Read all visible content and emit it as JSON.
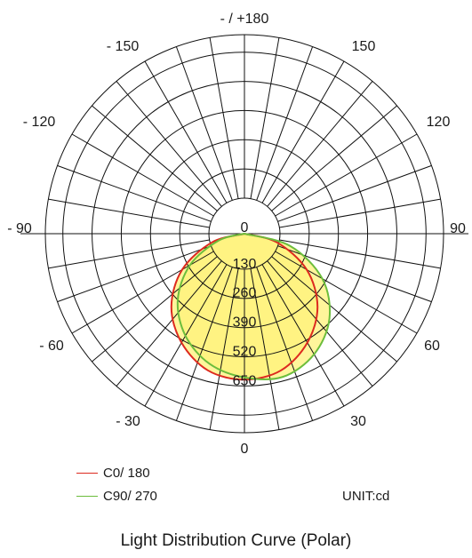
{
  "chart_data": {
    "type": "polar",
    "unit": "UNIT:cd",
    "caption": "Light Distribution Curve (Polar)",
    "radial_ticks": [
      0,
      130,
      260,
      390,
      520,
      650
    ],
    "rmax": 650,
    "angle_labels": {
      "top": "- / +180",
      "left_150": "- 150",
      "right_150": "150",
      "left_120": "- 120",
      "right_120": "120",
      "left_90": "- 90",
      "right_90": "90",
      "left_60": "- 60",
      "right_60": "60",
      "left_30": "- 30",
      "right_30": "30",
      "bottom": "0"
    },
    "colors": {
      "c0": "#dd2a1f",
      "c90": "#6cbd3c",
      "fill": "#fff27a"
    },
    "series": [
      {
        "name": "C0/ 180",
        "angles": [
          -90,
          -75,
          -60,
          -45,
          -30,
          -15,
          0,
          15,
          30,
          45,
          60,
          75,
          90
        ],
        "values": [
          0,
          150,
          320,
          460,
          560,
          630,
          650,
          630,
          560,
          460,
          320,
          150,
          0
        ]
      },
      {
        "name": "C90/ 270",
        "angles": [
          -90,
          -75,
          -60,
          -45,
          -30,
          -15,
          0,
          15,
          30,
          45,
          60,
          75,
          90
        ],
        "values": [
          0,
          120,
          280,
          420,
          525,
          600,
          640,
          660,
          620,
          535,
          400,
          210,
          0
        ]
      }
    ]
  }
}
